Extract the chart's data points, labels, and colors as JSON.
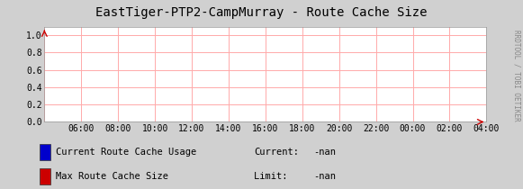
{
  "title": "EastTiger-PTP2-CampMurray - Route Cache Size",
  "bg_color": "#d0d0d0",
  "plot_bg_color": "#ffffff",
  "grid_color": "#ffaaaa",
  "border_color": "#000000",
  "arrow_color": "#cc0000",
  "ylim": [
    0.0,
    1.0
  ],
  "yticks": [
    0.0,
    0.2,
    0.4,
    0.6,
    0.8,
    1.0
  ],
  "xtick_labels": [
    "06:00",
    "08:00",
    "10:00",
    "12:00",
    "14:00",
    "16:00",
    "18:00",
    "20:00",
    "22:00",
    "00:00",
    "02:00",
    "04:00"
  ],
  "legend": [
    {
      "color": "#0000cc",
      "label": "Current Route Cache Usage",
      "key": "Current:",
      "value": "-nan"
    },
    {
      "color": "#cc0000",
      "label": "Max Route Cache Size     ",
      "key": "Limit:  ",
      "value": "-nan"
    }
  ],
  "watermark": "RRDTOOL / TOBI OETIKER",
  "title_fontsize": 10,
  "tick_fontsize": 7,
  "legend_fontsize": 7.5,
  "watermark_fontsize": 5.5
}
